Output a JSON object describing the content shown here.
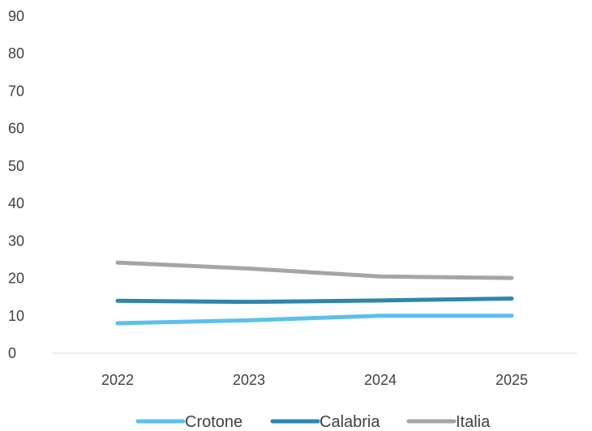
{
  "chart_data": {
    "type": "line",
    "title": "",
    "xlabel": "",
    "ylabel": "",
    "categories": [
      "2022",
      "2023",
      "2024",
      "2025"
    ],
    "ylim": [
      0,
      90
    ],
    "y_ticks": [
      0,
      10,
      20,
      30,
      40,
      50,
      60,
      70,
      80,
      90
    ],
    "grid": false,
    "legend_position": "bottom",
    "series": [
      {
        "name": "Crotone",
        "color": "#5BC0EB",
        "values": [
          8.0,
          8.8,
          10.0,
          10.0
        ]
      },
      {
        "name": "Calabria",
        "color": "#2E86AB",
        "values": [
          14.0,
          13.7,
          14.1,
          14.6
        ]
      },
      {
        "name": "Italia",
        "color": "#A5A5A5",
        "values": [
          24.2,
          22.6,
          20.5,
          20.1
        ]
      }
    ]
  }
}
